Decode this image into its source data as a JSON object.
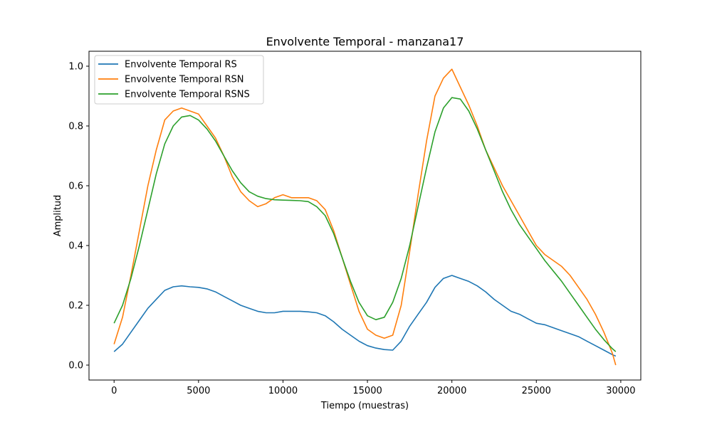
{
  "chart_data": {
    "type": "line",
    "title": "Envolvente Temporal - manzana17",
    "xlabel": "Tiempo (muestras)",
    "ylabel": "Amplitud",
    "xlim": [
      -1485,
      31185
    ],
    "ylim": [
      -0.05,
      1.05
    ],
    "xticks": [
      0,
      5000,
      10000,
      15000,
      20000,
      25000,
      30000
    ],
    "xtick_labels": [
      "0",
      "5000",
      "10000",
      "15000",
      "20000",
      "25000",
      "30000"
    ],
    "yticks": [
      0.0,
      0.2,
      0.4,
      0.6,
      0.8,
      1.0
    ],
    "ytick_labels": [
      "0.0",
      "0.2",
      "0.4",
      "0.6",
      "0.8",
      "1.0"
    ],
    "grid": false,
    "legend_position": "top-left",
    "series": [
      {
        "name": "Envolvente Temporal RS",
        "color": "#1f77b4",
        "x": [
          0,
          500,
          1000,
          1500,
          2000,
          2500,
          3000,
          3500,
          4000,
          4500,
          5000,
          5500,
          6000,
          6500,
          7000,
          7500,
          8000,
          8500,
          9000,
          9500,
          10000,
          10500,
          11000,
          11500,
          12000,
          12500,
          13000,
          13500,
          14000,
          14500,
          15000,
          15500,
          16000,
          16500,
          17000,
          17500,
          18000,
          18500,
          19000,
          19500,
          20000,
          20500,
          21000,
          21500,
          22000,
          22500,
          23000,
          23500,
          24000,
          24500,
          25000,
          25500,
          26000,
          26500,
          27000,
          27500,
          28000,
          28500,
          29000,
          29500,
          29700
        ],
        "values": [
          0.045,
          0.07,
          0.11,
          0.15,
          0.19,
          0.22,
          0.25,
          0.262,
          0.265,
          0.262,
          0.26,
          0.255,
          0.245,
          0.23,
          0.215,
          0.2,
          0.19,
          0.18,
          0.175,
          0.175,
          0.18,
          0.18,
          0.18,
          0.178,
          0.175,
          0.165,
          0.145,
          0.12,
          0.1,
          0.08,
          0.065,
          0.057,
          0.052,
          0.05,
          0.08,
          0.13,
          0.17,
          0.21,
          0.26,
          0.29,
          0.3,
          0.29,
          0.28,
          0.265,
          0.245,
          0.22,
          0.2,
          0.18,
          0.17,
          0.155,
          0.14,
          0.135,
          0.125,
          0.115,
          0.105,
          0.095,
          0.08,
          0.065,
          0.05,
          0.035,
          0.03
        ]
      },
      {
        "name": "Envolvente Temporal RSN",
        "color": "#ff7f0e",
        "x": [
          0,
          500,
          1000,
          1500,
          2000,
          2500,
          3000,
          3500,
          4000,
          4500,
          5000,
          5500,
          6000,
          6500,
          7000,
          7500,
          8000,
          8500,
          9000,
          9500,
          10000,
          10500,
          11000,
          11500,
          12000,
          12500,
          13000,
          13500,
          14000,
          14500,
          15000,
          15500,
          16000,
          16500,
          17000,
          17500,
          18000,
          18500,
          19000,
          19500,
          20000,
          20500,
          21000,
          21500,
          22000,
          22500,
          23000,
          23500,
          24000,
          24500,
          25000,
          25500,
          26000,
          26500,
          27000,
          27500,
          28000,
          28500,
          29000,
          29500,
          29700
        ],
        "values": [
          0.07,
          0.16,
          0.3,
          0.45,
          0.6,
          0.72,
          0.82,
          0.85,
          0.86,
          0.85,
          0.84,
          0.8,
          0.76,
          0.7,
          0.63,
          0.58,
          0.55,
          0.53,
          0.54,
          0.56,
          0.57,
          0.56,
          0.56,
          0.56,
          0.55,
          0.52,
          0.45,
          0.36,
          0.27,
          0.18,
          0.12,
          0.1,
          0.09,
          0.1,
          0.2,
          0.38,
          0.57,
          0.75,
          0.9,
          0.96,
          0.99,
          0.93,
          0.87,
          0.8,
          0.72,
          0.66,
          0.6,
          0.55,
          0.5,
          0.45,
          0.4,
          0.37,
          0.35,
          0.33,
          0.3,
          0.26,
          0.22,
          0.17,
          0.11,
          0.04,
          0.0
        ]
      },
      {
        "name": "Envolvente Temporal RSNS",
        "color": "#2ca02c",
        "x": [
          0,
          500,
          1000,
          1500,
          2000,
          2500,
          3000,
          3500,
          4000,
          4500,
          5000,
          5500,
          6000,
          6500,
          7000,
          7500,
          8000,
          8500,
          9000,
          9500,
          10000,
          10500,
          11000,
          11500,
          12000,
          12500,
          13000,
          13500,
          14000,
          14500,
          15000,
          15500,
          16000,
          16500,
          17000,
          17500,
          18000,
          18500,
          19000,
          19500,
          20000,
          20500,
          21000,
          21500,
          22000,
          22500,
          23000,
          23500,
          24000,
          24500,
          25000,
          25500,
          26000,
          26500,
          27000,
          27500,
          28000,
          28500,
          29000,
          29500,
          29700
        ],
        "values": [
          0.14,
          0.2,
          0.29,
          0.4,
          0.52,
          0.64,
          0.74,
          0.8,
          0.83,
          0.835,
          0.82,
          0.79,
          0.75,
          0.7,
          0.65,
          0.61,
          0.58,
          0.565,
          0.557,
          0.553,
          0.552,
          0.551,
          0.55,
          0.547,
          0.53,
          0.5,
          0.44,
          0.36,
          0.28,
          0.21,
          0.165,
          0.152,
          0.16,
          0.21,
          0.29,
          0.4,
          0.53,
          0.66,
          0.78,
          0.86,
          0.895,
          0.89,
          0.85,
          0.79,
          0.72,
          0.65,
          0.58,
          0.52,
          0.47,
          0.43,
          0.39,
          0.35,
          0.315,
          0.28,
          0.24,
          0.2,
          0.16,
          0.12,
          0.085,
          0.055,
          0.045
        ]
      }
    ]
  }
}
